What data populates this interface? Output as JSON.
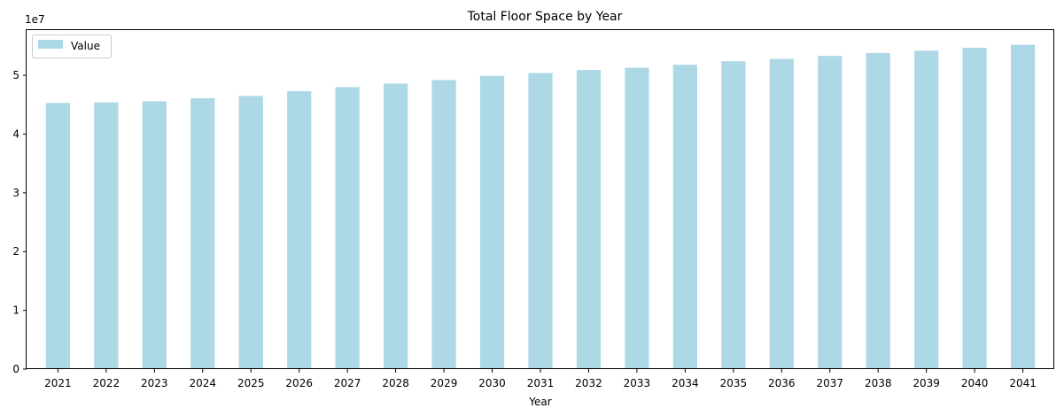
{
  "chart_data": {
    "type": "bar",
    "title": "Total Floor Space by Year",
    "xlabel": "Year",
    "ylabel": "",
    "y_offset_label": "1e7",
    "y_scale": 10000000,
    "ylim": [
      0,
      57700000
    ],
    "y_ticks": [
      0,
      1,
      2,
      3,
      4,
      5
    ],
    "categories": [
      "2021",
      "2022",
      "2023",
      "2024",
      "2025",
      "2026",
      "2027",
      "2028",
      "2029",
      "2030",
      "2031",
      "2032",
      "2033",
      "2034",
      "2035",
      "2036",
      "2037",
      "2038",
      "2039",
      "2040",
      "2041"
    ],
    "series": [
      {
        "name": "Value",
        "color": "#add8e6",
        "values": [
          45300000,
          45400000,
          45600000,
          46100000,
          46500000,
          47300000,
          48000000,
          48600000,
          49200000,
          49900000,
          50400000,
          50900000,
          51300000,
          51800000,
          52400000,
          52800000,
          53300000,
          53800000,
          54200000,
          54700000,
          55200000
        ]
      }
    ],
    "legend_position": "top-left",
    "grid": false
  }
}
